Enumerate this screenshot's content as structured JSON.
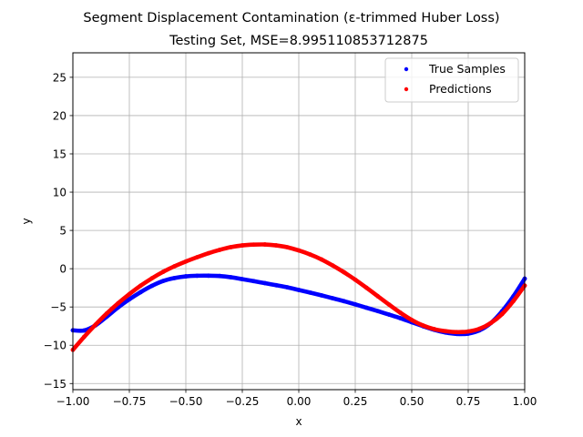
{
  "chart_data": {
    "type": "scatter",
    "title": "Segment Displacement Contamination (ε-trimmed Huber Loss)",
    "subtitle": "Testing Set, MSE=8.995110853712875",
    "xlabel": "x",
    "ylabel": "y",
    "xlim": [
      -1.0,
      1.0
    ],
    "ylim": [
      -15.8,
      28.2
    ],
    "xticks": [
      -1.0,
      -0.75,
      -0.5,
      -0.25,
      0.0,
      0.25,
      0.5,
      0.75,
      1.0
    ],
    "xtick_labels": [
      "−1.00",
      "−0.75",
      "−0.50",
      "−0.25",
      "0.00",
      "0.25",
      "0.50",
      "0.75",
      "1.00"
    ],
    "yticks": [
      -15,
      -10,
      -5,
      0,
      5,
      10,
      15,
      20,
      25
    ],
    "ytick_labels": [
      "−15",
      "−10",
      "−5",
      "0",
      "5",
      "10",
      "15",
      "20",
      "25"
    ],
    "grid": true,
    "legend_position": "top-right",
    "series": [
      {
        "name": "True Samples",
        "color": "#0000ff",
        "x": [
          -1.0,
          -0.95,
          -0.9,
          -0.85,
          -0.8,
          -0.75,
          -0.7,
          -0.65,
          -0.6,
          -0.55,
          -0.5,
          -0.45,
          -0.4,
          -0.35,
          -0.3,
          -0.25,
          -0.2,
          -0.15,
          -0.1,
          -0.05,
          0.0,
          0.05,
          0.1,
          0.15,
          0.2,
          0.25,
          0.3,
          0.35,
          0.4,
          0.45,
          0.5,
          0.55,
          0.6,
          0.65,
          0.7,
          0.75,
          0.8,
          0.85,
          0.9,
          0.95,
          1.0
        ],
        "y": [
          -8.05,
          -8.07,
          -7.4,
          -6.26,
          -5.06,
          -4.0,
          -3.06,
          -2.24,
          -1.6,
          -1.22,
          -1.0,
          -0.92,
          -0.91,
          -0.96,
          -1.12,
          -1.37,
          -1.62,
          -1.89,
          -2.16,
          -2.44,
          -2.78,
          -3.12,
          -3.48,
          -3.86,
          -4.24,
          -4.66,
          -5.1,
          -5.54,
          -6.0,
          -6.47,
          -6.99,
          -7.51,
          -7.98,
          -8.34,
          -8.52,
          -8.48,
          -8.05,
          -7.1,
          -5.55,
          -3.6,
          -1.3
        ]
      },
      {
        "name": "Predictions",
        "color": "#ff0000",
        "x": [
          -1.0,
          -0.95,
          -0.9,
          -0.85,
          -0.8,
          -0.75,
          -0.7,
          -0.65,
          -0.6,
          -0.55,
          -0.5,
          -0.45,
          -0.4,
          -0.35,
          -0.3,
          -0.25,
          -0.2,
          -0.15,
          -0.1,
          -0.05,
          0.0,
          0.05,
          0.1,
          0.15,
          0.2,
          0.25,
          0.3,
          0.35,
          0.4,
          0.45,
          0.5,
          0.55,
          0.6,
          0.65,
          0.7,
          0.75,
          0.8,
          0.85,
          0.9,
          0.95,
          1.0
        ],
        "y": [
          -10.6,
          -8.9,
          -7.32,
          -5.85,
          -4.52,
          -3.32,
          -2.22,
          -1.25,
          -0.4,
          0.32,
          0.94,
          1.5,
          2.02,
          2.46,
          2.82,
          3.04,
          3.14,
          3.16,
          3.04,
          2.8,
          2.38,
          1.86,
          1.22,
          0.42,
          -0.46,
          -1.44,
          -2.5,
          -3.6,
          -4.7,
          -5.76,
          -6.7,
          -7.42,
          -7.9,
          -8.16,
          -8.28,
          -8.2,
          -7.85,
          -7.1,
          -5.92,
          -4.22,
          -2.2
        ]
      }
    ]
  }
}
